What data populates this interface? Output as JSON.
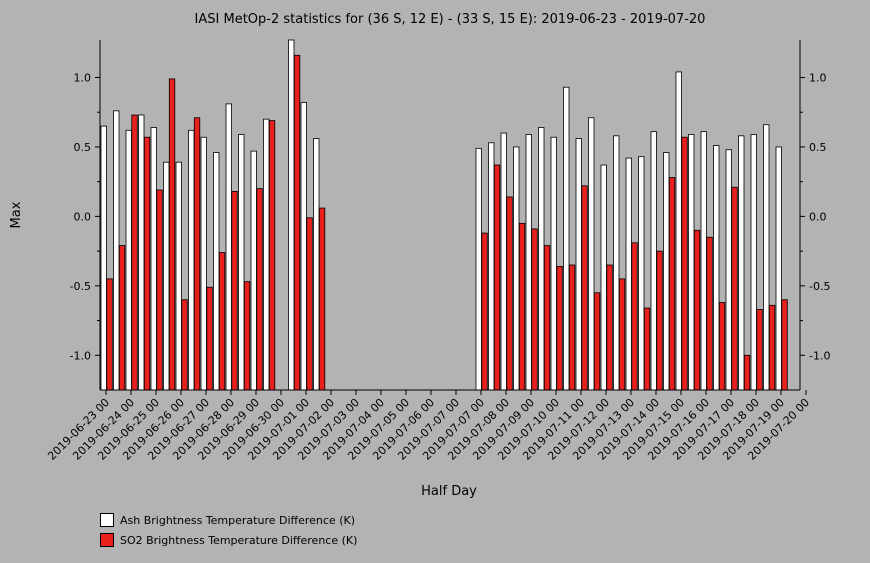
{
  "chart_data": {
    "type": "bar",
    "title": "IASI MetOp-2 statistics for (36 S, 12 E) - (33 S, 15 E): 2019-06-23 - 2019-07-20",
    "xlabel": "Half Day",
    "ylabel": "Max",
    "ylim": [
      -1.25,
      1.27
    ],
    "yticks": [
      -1.0,
      -0.5,
      0.0,
      0.5,
      1.0
    ],
    "ytick_labels": [
      "-1.0",
      "-0.5",
      "0.0",
      "0.5",
      "1.0"
    ],
    "categories": [
      "2019-06-23 00",
      "2019-06-23 12",
      "2019-06-24 00",
      "2019-06-24 12",
      "2019-06-25 00",
      "2019-06-25 12",
      "2019-06-26 00",
      "2019-06-26 12",
      "2019-06-27 00",
      "2019-06-27 12",
      "2019-06-28 00",
      "2019-06-28 12",
      "2019-06-29 00",
      "2019-06-29 12",
      "2019-06-30 00",
      "2019-06-30 12",
      "2019-07-01 00",
      "2019-07-01 12",
      "2019-07-02 00",
      "2019-07-02 12",
      "2019-07-03 00",
      "2019-07-03 12",
      "2019-07-04 00",
      "2019-07-04 12",
      "2019-07-05 00",
      "2019-07-05 12",
      "2019-07-06 00",
      "2019-07-06 12",
      "2019-07-07 00",
      "2019-07-07 12",
      "2019-07-08 00",
      "2019-07-08 12",
      "2019-07-09 00",
      "2019-07-09 12",
      "2019-07-10 00",
      "2019-07-10 12",
      "2019-07-11 00",
      "2019-07-11 12",
      "2019-07-12 00",
      "2019-07-12 12",
      "2019-07-13 00",
      "2019-07-13 12",
      "2019-07-14 00",
      "2019-07-14 12",
      "2019-07-15 00",
      "2019-07-15 12",
      "2019-07-16 00",
      "2019-07-16 12",
      "2019-07-17 00",
      "2019-07-17 12",
      "2019-07-18 00",
      "2019-07-18 12",
      "2019-07-19 00",
      "2019-07-19 12",
      "2019-07-20 00",
      "2019-07-20 12"
    ],
    "tick_labels": [
      "2019-06-23 00",
      "2019-06-24 00",
      "2019-06-25 00",
      "2019-06-26 00",
      "2019-06-27 00",
      "2019-06-28 00",
      "2019-06-29 00",
      "2019-06-30 00",
      "2019-07-01 00",
      "2019-07-02 00",
      "2019-07-03 00",
      "2019-07-04 00",
      "2019-07-05 00",
      "2019-07-06 00",
      "2019-07-07 00",
      "2019-07-07 00",
      "2019-07-08 00",
      "2019-07-09 00",
      "2019-07-10 00",
      "2019-07-11 00",
      "2019-07-12 00",
      "2019-07-13 00",
      "2019-07-14 00",
      "2019-07-15 00",
      "2019-07-16 00",
      "2019-07-17 00",
      "2019-07-18 00",
      "2019-07-19 00",
      "2019-07-20 00"
    ],
    "series": [
      {
        "name": "Ash Brightness Temperature Difference (K)",
        "color": "#ffffff",
        "values": [
          0.65,
          0.76,
          0.62,
          0.73,
          0.64,
          0.39,
          0.39,
          0.62,
          0.57,
          0.46,
          0.81,
          0.59,
          0.47,
          0.7,
          null,
          1.27,
          0.82,
          0.56,
          null,
          null,
          null,
          null,
          null,
          null,
          null,
          null,
          null,
          null,
          null,
          null,
          0.49,
          0.53,
          0.6,
          0.5,
          0.59,
          0.64,
          0.57,
          0.93,
          0.56,
          0.71,
          0.37,
          0.58,
          0.42,
          0.43,
          0.61,
          0.46,
          1.04,
          0.59,
          0.61,
          0.51,
          0.48,
          0.58,
          0.59,
          0.66,
          0.5,
          null
        ]
      },
      {
        "name": "SO2 Brightness Temperature Difference (K)",
        "color": "#e8201e",
        "values": [
          -0.45,
          -0.21,
          0.73,
          0.57,
          0.19,
          0.99,
          -0.6,
          0.71,
          -0.51,
          -0.26,
          0.18,
          -0.47,
          0.2,
          0.69,
          null,
          1.16,
          -0.01,
          0.06,
          null,
          null,
          null,
          null,
          null,
          null,
          null,
          null,
          null,
          null,
          null,
          null,
          -0.12,
          0.37,
          0.14,
          -0.05,
          -0.09,
          -0.21,
          -0.36,
          -0.35,
          0.22,
          -0.55,
          -0.35,
          -0.45,
          -0.19,
          -0.66,
          -0.25,
          0.28,
          0.57,
          -0.1,
          -0.15,
          -0.62,
          0.21,
          -1.0,
          -0.67,
          -0.64,
          -0.6,
          null
        ]
      }
    ]
  }
}
